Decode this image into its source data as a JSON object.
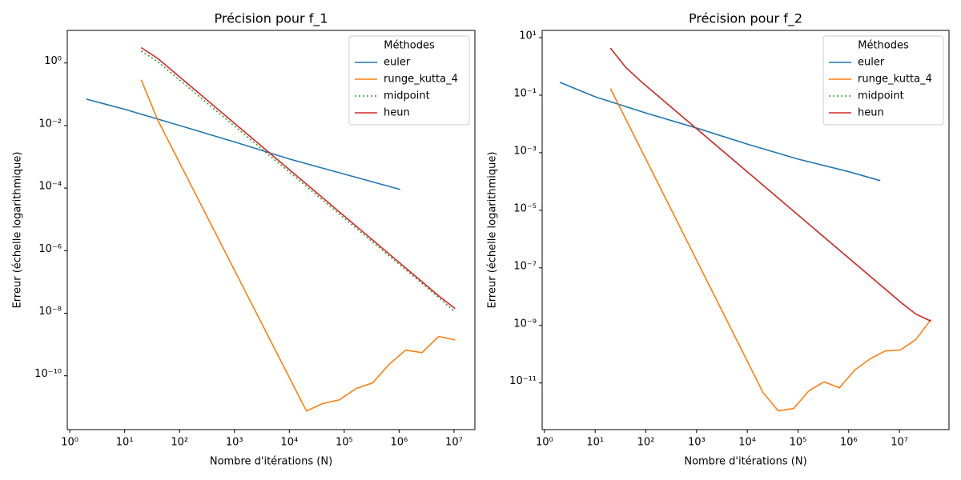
{
  "chart_data": [
    {
      "type": "line",
      "title": "Précision pour f_1",
      "x_label": "Nombre d'itérations (N)",
      "y_label": "Erreur (échelle logarithmique)",
      "x_scale": "log",
      "y_scale": "log",
      "legend_title": "Méthodes",
      "legend_position": "upper-right",
      "xlim": [
        0.9,
        24000000
      ],
      "ylim": [
        1.9e-12,
        11
      ],
      "xticks": [
        {
          "value": 1,
          "label": "10⁰"
        },
        {
          "value": 10,
          "label": "10¹"
        },
        {
          "value": 100,
          "label": "10²"
        },
        {
          "value": 1000,
          "label": "10³"
        },
        {
          "value": 10000,
          "label": "10⁴"
        },
        {
          "value": 100000,
          "label": "10⁵"
        },
        {
          "value": 1000000,
          "label": "10⁶"
        },
        {
          "value": 10000000,
          "label": "10⁷"
        }
      ],
      "yticks": [
        {
          "value": 1,
          "label": "10⁰"
        },
        {
          "value": 0.01,
          "label": "10⁻²"
        },
        {
          "value": 0.0001,
          "label": "10⁻⁴"
        },
        {
          "value": 1e-06,
          "label": "10⁻⁶"
        },
        {
          "value": 1e-08,
          "label": "10⁻⁸"
        },
        {
          "value": 1e-10,
          "label": "10⁻¹⁰"
        }
      ],
      "series": [
        {
          "name": "euler",
          "color": "#1f77b4",
          "linestyle": "solid",
          "x": [
            2,
            10,
            100,
            1000,
            10000,
            100000,
            1048576
          ],
          "values": [
            0.07,
            0.033,
            0.01,
            0.003,
            0.00085,
            0.00028,
            9e-05
          ]
        },
        {
          "name": "runge_kutta_4",
          "color": "#ff7f0e",
          "linestyle": "solid",
          "x": [
            20,
            40,
            20480,
            40960,
            81920,
            163840,
            327680,
            655360,
            1310720,
            2621440,
            5242880,
            10485760
          ],
          "values": [
            0.29,
            0.015,
            7.5e-12,
            1.3e-11,
            1.7e-11,
            3.9e-11,
            5.9e-11,
            2.3e-10,
            6.6e-10,
            5.5e-10,
            1.8e-09,
            1.4e-09
          ]
        },
        {
          "name": "midpoint",
          "color": "#2ca02c",
          "linestyle": "dotted",
          "x": [
            20,
            40,
            5242880,
            10485760
          ],
          "values": [
            2.4,
            1.1,
            3.2e-08,
            1.1e-08
          ]
        },
        {
          "name": "heun",
          "color": "#d62728",
          "linestyle": "solid",
          "x": [
            20,
            40,
            5242880,
            10485760
          ],
          "values": [
            3.1,
            1.4,
            3.6e-08,
            1.4e-08
          ]
        }
      ]
    },
    {
      "type": "line",
      "title": "Précision pour f_2",
      "x_label": "Nombre d'itérations (N)",
      "y_label": "Erreur (échelle logarithmique)",
      "x_scale": "log",
      "y_scale": "log",
      "legend_title": "Méthodes",
      "legend_position": "upper-right",
      "xlim": [
        0.9,
        95000000
      ],
      "ylim": [
        2.4e-13,
        17.8
      ],
      "xticks": [
        {
          "value": 1,
          "label": "10⁰"
        },
        {
          "value": 10,
          "label": "10¹"
        },
        {
          "value": 100,
          "label": "10²"
        },
        {
          "value": 1000,
          "label": "10³"
        },
        {
          "value": 10000,
          "label": "10⁴"
        },
        {
          "value": 100000,
          "label": "10⁵"
        },
        {
          "value": 1000000,
          "label": "10⁶"
        },
        {
          "value": 10000000,
          "label": "10⁷"
        }
      ],
      "yticks": [
        {
          "value": 10,
          "label": "10¹"
        },
        {
          "value": 0.1,
          "label": "10⁻¹"
        },
        {
          "value": 0.001,
          "label": "10⁻³"
        },
        {
          "value": 1e-05,
          "label": "10⁻⁵"
        },
        {
          "value": 1e-07,
          "label": "10⁻⁷"
        },
        {
          "value": 1e-09,
          "label": "10⁻⁹"
        },
        {
          "value": 1e-11,
          "label": "10⁻¹¹"
        }
      ],
      "series": [
        {
          "name": "euler",
          "color": "#1f77b4",
          "linestyle": "solid",
          "x": [
            2,
            10,
            100,
            1000,
            10000,
            100000,
            1000000,
            4194304
          ],
          "values": [
            0.28,
            0.088,
            0.024,
            0.0072,
            0.002,
            0.0006,
            0.00022,
            0.000107
          ]
        },
        {
          "name": "runge_kutta_4",
          "color": "#ff7f0e",
          "linestyle": "solid",
          "x": [
            20,
            40,
            20480,
            40960,
            81920,
            163840,
            327680,
            655360,
            1310720,
            2621440,
            5242880,
            10485760,
            20971520,
            41943040
          ],
          "values": [
            0.17,
            0.015,
            4.6e-12,
            1.07e-12,
            1.3e-12,
            5.3e-12,
            1.1e-11,
            6.8e-12,
            2.8e-11,
            6.8e-11,
            1.3e-10,
            1.4e-10,
            3.2e-10,
            1.6e-09
          ]
        },
        {
          "name": "midpoint",
          "color": "#2ca02c",
          "linestyle": "dotted",
          "x": [
            20,
            40,
            80,
            10485760,
            20971520,
            41943040
          ],
          "values": [
            4.3,
            0.93,
            0.3,
            6.5e-09,
            2.5e-09,
            1.4e-09
          ]
        },
        {
          "name": "heun",
          "color": "#d62728",
          "linestyle": "solid",
          "x": [
            20,
            40,
            80,
            10485760,
            20971520,
            41943040
          ],
          "values": [
            4.3,
            0.93,
            0.3,
            6.5e-09,
            2.5e-09,
            1.4e-09
          ]
        }
      ]
    }
  ]
}
